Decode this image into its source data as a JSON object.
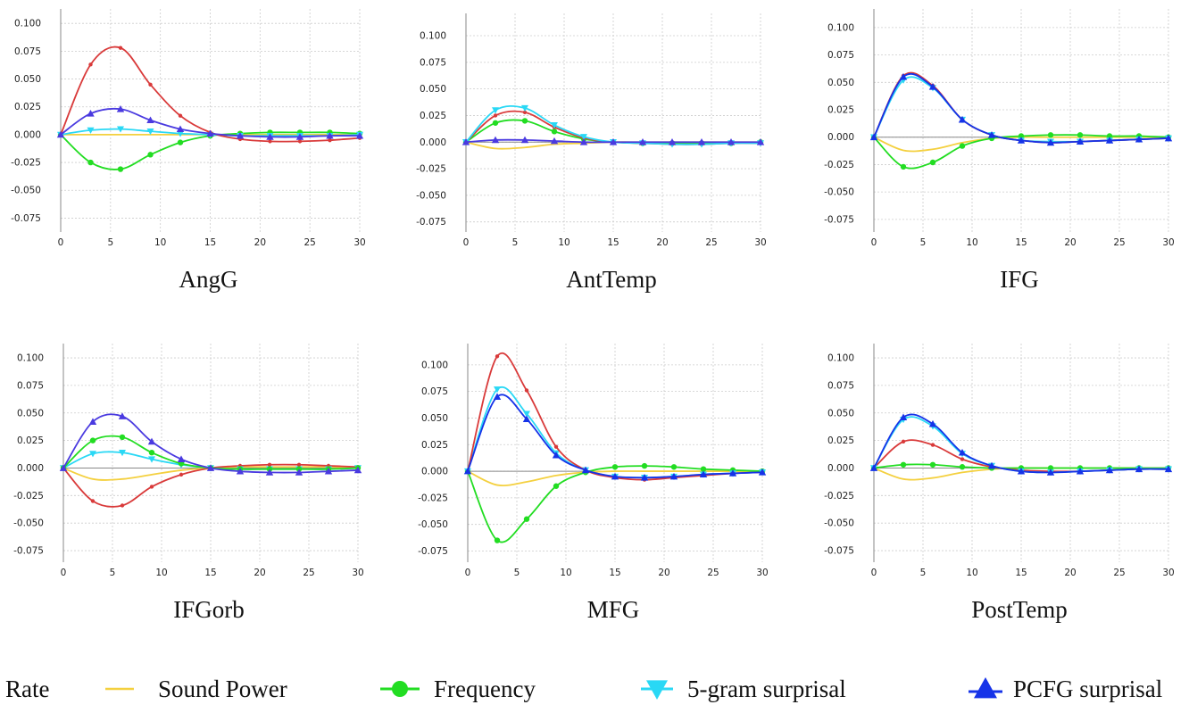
{
  "legend": {
    "items": [
      {
        "label": "Rate",
        "color": "#d93a3a",
        "marker": "none"
      },
      {
        "label": "Sound Power",
        "color": "#f4d03f",
        "marker": "line"
      },
      {
        "label": "Frequency",
        "color": "#22dd22",
        "marker": "circle"
      },
      {
        "label": "5-gram surprisal",
        "color": "#29d8f5",
        "marker": "triangle-down"
      },
      {
        "label": "PCFG surprisal",
        "color": "#1633e8",
        "marker": "triangle-up"
      }
    ]
  },
  "chart_data": [
    {
      "type": "line",
      "title": "AngG",
      "xlabel": "",
      "ylabel": "",
      "xlim": [
        0,
        30
      ],
      "ylim": [
        -0.085,
        0.11
      ],
      "xticks": [
        0,
        5,
        10,
        15,
        20,
        25,
        30
      ],
      "yticks": [
        -0.075,
        -0.05,
        -0.025,
        0.0,
        0.025,
        0.05,
        0.075,
        0.1
      ],
      "grid": true,
      "series": [
        {
          "name": "Sound Power",
          "color": "#f4d03f",
          "marker": "none",
          "x": [
            0,
            3,
            6,
            9,
            12,
            15,
            18,
            21,
            24,
            27,
            30
          ],
          "y": [
            0,
            0,
            0,
            0,
            0,
            0,
            0,
            0,
            0,
            0,
            0
          ]
        },
        {
          "name": "Frequency",
          "color": "#22dd22",
          "marker": "circle",
          "x": [
            0,
            3,
            6,
            9,
            12,
            15,
            18,
            21,
            24,
            27,
            30
          ],
          "y": [
            0,
            -0.025,
            -0.031,
            -0.018,
            -0.007,
            -0.001,
            0.001,
            0.002,
            0.002,
            0.002,
            0.001
          ]
        },
        {
          "name": "5-gram surprisal",
          "color": "#29d8f5",
          "marker": "triangle-down",
          "x": [
            0,
            3,
            6,
            9,
            12,
            15,
            18,
            21,
            24,
            27,
            30
          ],
          "y": [
            0,
            0.004,
            0.005,
            0.003,
            0.001,
            0,
            -0.001,
            -0.001,
            -0.001,
            -0.001,
            0
          ]
        },
        {
          "name": "Rate",
          "color": "#d93a3a",
          "marker": "dot",
          "x": [
            0,
            3,
            6,
            9,
            12,
            15,
            18,
            21,
            24,
            27,
            30
          ],
          "y": [
            0,
            0.063,
            0.078,
            0.045,
            0.017,
            0.002,
            -0.004,
            -0.006,
            -0.006,
            -0.005,
            -0.003
          ]
        },
        {
          "name": "PCFG surprisal",
          "color": "#4a3ae0",
          "marker": "triangle-up",
          "x": [
            0,
            3,
            6,
            9,
            12,
            15,
            18,
            21,
            24,
            27,
            30
          ],
          "y": [
            0,
            0.019,
            0.023,
            0.013,
            0.005,
            0.001,
            -0.001,
            -0.002,
            -0.002,
            -0.001,
            -0.001
          ]
        }
      ]
    },
    {
      "type": "line",
      "title": "AntTemp",
      "xlabel": "",
      "ylabel": "",
      "xlim": [
        0,
        30
      ],
      "ylim": [
        -0.085,
        0.11
      ],
      "xticks": [
        0,
        5,
        10,
        15,
        20,
        25,
        30
      ],
      "yticks": [
        -0.075,
        -0.05,
        -0.025,
        0.0,
        0.025,
        0.05,
        0.075,
        0.1
      ],
      "grid": true,
      "series": [
        {
          "name": "Sound Power",
          "color": "#f4d03f",
          "marker": "none",
          "x": [
            0,
            3,
            6,
            9,
            12,
            15,
            18,
            21,
            24,
            27,
            30
          ],
          "y": [
            0,
            -0.006,
            -0.005,
            -0.002,
            -0.001,
            0,
            0,
            0,
            0,
            0,
            0
          ]
        },
        {
          "name": "Frequency",
          "color": "#22dd22",
          "marker": "circle",
          "x": [
            0,
            3,
            6,
            9,
            12,
            15,
            18,
            21,
            24,
            27,
            30
          ],
          "y": [
            0,
            0.018,
            0.02,
            0.01,
            0.003,
            0,
            -0.001,
            -0.001,
            -0.001,
            -0.001,
            0
          ]
        },
        {
          "name": "Rate",
          "color": "#d93a3a",
          "marker": "dot",
          "x": [
            0,
            3,
            6,
            9,
            12,
            15,
            18,
            21,
            24,
            27,
            30
          ],
          "y": [
            0,
            0.025,
            0.028,
            0.014,
            0.004,
            0,
            -0.001,
            -0.002,
            -0.002,
            -0.001,
            -0.001
          ]
        },
        {
          "name": "5-gram surprisal",
          "color": "#29d8f5",
          "marker": "triangle-down",
          "x": [
            0,
            3,
            6,
            9,
            12,
            15,
            18,
            21,
            24,
            27,
            30
          ],
          "y": [
            0,
            0.03,
            0.032,
            0.016,
            0.005,
            0,
            -0.001,
            -0.002,
            -0.002,
            -0.001,
            -0.001
          ]
        },
        {
          "name": "PCFG surprisal",
          "color": "#4a3ae0",
          "marker": "triangle-up",
          "x": [
            0,
            3,
            6,
            9,
            12,
            15,
            18,
            21,
            24,
            27,
            30
          ],
          "y": [
            0,
            0.002,
            0.002,
            0.001,
            0,
            0,
            0,
            0,
            0,
            0,
            0
          ]
        }
      ]
    },
    {
      "type": "line",
      "title": "IFG",
      "xlabel": "",
      "ylabel": "",
      "xlim": [
        0,
        30
      ],
      "ylim": [
        -0.085,
        0.11
      ],
      "xticks": [
        0,
        5,
        10,
        15,
        20,
        25,
        30
      ],
      "yticks": [
        -0.075,
        -0.05,
        -0.025,
        0.0,
        0.025,
        0.05,
        0.075,
        0.1
      ],
      "grid": true,
      "series": [
        {
          "name": "Sound Power",
          "color": "#f4d03f",
          "marker": "none",
          "x": [
            0,
            3,
            6,
            9,
            12,
            15,
            18,
            21,
            24,
            27,
            30
          ],
          "y": [
            0,
            -0.012,
            -0.011,
            -0.005,
            -0.001,
            0,
            0,
            0,
            0,
            0,
            0
          ]
        },
        {
          "name": "Frequency",
          "color": "#22dd22",
          "marker": "circle",
          "x": [
            0,
            3,
            6,
            9,
            12,
            15,
            18,
            21,
            24,
            27,
            30
          ],
          "y": [
            0,
            -0.027,
            -0.023,
            -0.008,
            -0.001,
            0.001,
            0.002,
            0.002,
            0.001,
            0.001,
            0
          ]
        },
        {
          "name": "5-gram surprisal",
          "color": "#29d8f5",
          "marker": "triangle-down",
          "x": [
            0,
            3,
            6,
            9,
            12,
            15,
            18,
            21,
            24,
            27,
            30
          ],
          "y": [
            0,
            0.052,
            0.045,
            0.016,
            0.002,
            -0.003,
            -0.004,
            -0.004,
            -0.003,
            -0.002,
            -0.001
          ]
        },
        {
          "name": "Rate",
          "color": "#d93a3a",
          "marker": "dot",
          "x": [
            0,
            3,
            6,
            9,
            12,
            15,
            18,
            21,
            24,
            27,
            30
          ],
          "y": [
            0,
            0.056,
            0.047,
            0.016,
            0.002,
            -0.003,
            -0.005,
            -0.004,
            -0.003,
            -0.002,
            -0.001
          ]
        },
        {
          "name": "PCFG surprisal",
          "color": "#1633e8",
          "marker": "triangle-up",
          "x": [
            0,
            3,
            6,
            9,
            12,
            15,
            18,
            21,
            24,
            27,
            30
          ],
          "y": [
            0,
            0.055,
            0.046,
            0.016,
            0.002,
            -0.003,
            -0.005,
            -0.004,
            -0.003,
            -0.002,
            -0.001
          ]
        }
      ]
    },
    {
      "type": "line",
      "title": "IFGorb",
      "xlabel": "",
      "ylabel": "",
      "xlim": [
        0,
        30
      ],
      "ylim": [
        -0.085,
        0.11
      ],
      "xticks": [
        0,
        5,
        10,
        15,
        20,
        25,
        30
      ],
      "yticks": [
        -0.075,
        -0.05,
        -0.025,
        0.0,
        0.025,
        0.05,
        0.075,
        0.1
      ],
      "grid": true,
      "series": [
        {
          "name": "Sound Power",
          "color": "#f4d03f",
          "marker": "none",
          "x": [
            0,
            3,
            6,
            9,
            12,
            15,
            18,
            21,
            24,
            27,
            30
          ],
          "y": [
            0,
            -0.01,
            -0.01,
            -0.006,
            -0.002,
            0,
            0.001,
            0.001,
            0.001,
            0.001,
            0
          ]
        },
        {
          "name": "Rate",
          "color": "#d93a3a",
          "marker": "dot",
          "x": [
            0,
            3,
            6,
            9,
            12,
            15,
            18,
            21,
            24,
            27,
            30
          ],
          "y": [
            0,
            -0.03,
            -0.034,
            -0.017,
            -0.006,
            0,
            0.002,
            0.003,
            0.003,
            0.002,
            0.001
          ]
        },
        {
          "name": "5-gram surprisal",
          "color": "#29d8f5",
          "marker": "triangle-down",
          "x": [
            0,
            3,
            6,
            9,
            12,
            15,
            18,
            21,
            24,
            27,
            30
          ],
          "y": [
            0,
            0.013,
            0.014,
            0.008,
            0.003,
            0,
            -0.001,
            -0.001,
            -0.001,
            -0.001,
            0
          ]
        },
        {
          "name": "Frequency",
          "color": "#22dd22",
          "marker": "circle",
          "x": [
            0,
            3,
            6,
            9,
            12,
            15,
            18,
            21,
            24,
            27,
            30
          ],
          "y": [
            0,
            0.025,
            0.028,
            0.014,
            0.004,
            0,
            -0.001,
            -0.001,
            -0.001,
            -0.001,
            0
          ]
        },
        {
          "name": "PCFG surprisal",
          "color": "#4a3ae0",
          "marker": "triangle-up",
          "x": [
            0,
            3,
            6,
            9,
            12,
            15,
            18,
            21,
            24,
            27,
            30
          ],
          "y": [
            0,
            0.042,
            0.047,
            0.024,
            0.008,
            0,
            -0.003,
            -0.004,
            -0.004,
            -0.003,
            -0.002
          ]
        }
      ]
    },
    {
      "type": "line",
      "title": "MFG",
      "xlabel": "",
      "ylabel": "",
      "xlim": [
        0,
        30
      ],
      "ylim": [
        -0.085,
        0.12
      ],
      "xticks": [
        0,
        5,
        10,
        15,
        20,
        25,
        30
      ],
      "yticks": [
        -0.075,
        -0.05,
        -0.025,
        0.0,
        0.025,
        0.05,
        0.075,
        0.1
      ],
      "grid": true,
      "series": [
        {
          "name": "Sound Power",
          "color": "#f4d03f",
          "marker": "none",
          "x": [
            0,
            3,
            6,
            9,
            12,
            15,
            18,
            21,
            24,
            27,
            30
          ],
          "y": [
            0,
            -0.013,
            -0.01,
            -0.004,
            -0.001,
            0,
            0,
            0,
            0,
            0,
            0
          ]
        },
        {
          "name": "Frequency",
          "color": "#22dd22",
          "marker": "circle",
          "x": [
            0,
            3,
            6,
            9,
            12,
            15,
            18,
            21,
            24,
            27,
            30
          ],
          "y": [
            0,
            -0.065,
            -0.045,
            -0.014,
            -0.001,
            0.004,
            0.005,
            0.004,
            0.002,
            0.001,
            0
          ]
        },
        {
          "name": "5-gram surprisal",
          "color": "#29d8f5",
          "marker": "triangle-down",
          "x": [
            0,
            3,
            6,
            9,
            12,
            15,
            18,
            21,
            24,
            27,
            30
          ],
          "y": [
            0,
            0.077,
            0.054,
            0.017,
            0.001,
            -0.005,
            -0.006,
            -0.005,
            -0.003,
            -0.002,
            -0.001
          ]
        },
        {
          "name": "Rate",
          "color": "#d93a3a",
          "marker": "dot",
          "x": [
            0,
            3,
            6,
            9,
            12,
            15,
            18,
            21,
            24,
            27,
            30
          ],
          "y": [
            0,
            0.108,
            0.076,
            0.023,
            0.001,
            -0.006,
            -0.008,
            -0.006,
            -0.004,
            -0.002,
            -0.001
          ]
        },
        {
          "name": "PCFG surprisal",
          "color": "#1633e8",
          "marker": "triangle-up",
          "x": [
            0,
            3,
            6,
            9,
            12,
            15,
            18,
            21,
            24,
            27,
            30
          ],
          "y": [
            0,
            0.07,
            0.049,
            0.015,
            0.001,
            -0.005,
            -0.006,
            -0.005,
            -0.003,
            -0.002,
            -0.001
          ]
        }
      ]
    },
    {
      "type": "line",
      "title": "PostTemp",
      "xlabel": "",
      "ylabel": "",
      "xlim": [
        0,
        30
      ],
      "ylim": [
        -0.085,
        0.11
      ],
      "xticks": [
        0,
        5,
        10,
        15,
        20,
        25,
        30
      ],
      "yticks": [
        -0.075,
        -0.05,
        -0.025,
        0.0,
        0.025,
        0.05,
        0.075,
        0.1
      ],
      "grid": true,
      "series": [
        {
          "name": "Sound Power",
          "color": "#f4d03f",
          "marker": "none",
          "x": [
            0,
            3,
            6,
            9,
            12,
            15,
            18,
            21,
            24,
            27,
            30
          ],
          "y": [
            0,
            -0.01,
            -0.009,
            -0.004,
            -0.001,
            0,
            0,
            0,
            0,
            0,
            0
          ]
        },
        {
          "name": "Frequency",
          "color": "#22dd22",
          "marker": "circle",
          "x": [
            0,
            3,
            6,
            9,
            12,
            15,
            18,
            21,
            24,
            27,
            30
          ],
          "y": [
            0,
            0.003,
            0.003,
            0.001,
            0,
            0,
            0,
            0,
            0,
            0,
            0
          ]
        },
        {
          "name": "Rate",
          "color": "#d93a3a",
          "marker": "dot",
          "x": [
            0,
            3,
            6,
            9,
            12,
            15,
            18,
            21,
            24,
            27,
            30
          ],
          "y": [
            0,
            0.024,
            0.021,
            0.008,
            0.001,
            -0.002,
            -0.003,
            -0.003,
            -0.002,
            -0.001,
            -0.001
          ]
        },
        {
          "name": "5-gram surprisal",
          "color": "#29d8f5",
          "marker": "triangle-down",
          "x": [
            0,
            3,
            6,
            9,
            12,
            15,
            18,
            21,
            24,
            27,
            30
          ],
          "y": [
            0,
            0.044,
            0.038,
            0.013,
            0.002,
            -0.003,
            -0.004,
            -0.003,
            -0.002,
            -0.001,
            -0.001
          ]
        },
        {
          "name": "PCFG surprisal",
          "color": "#1633e8",
          "marker": "triangle-up",
          "x": [
            0,
            3,
            6,
            9,
            12,
            15,
            18,
            21,
            24,
            27,
            30
          ],
          "y": [
            0,
            0.046,
            0.04,
            0.014,
            0.002,
            -0.003,
            -0.004,
            -0.003,
            -0.002,
            -0.001,
            -0.001
          ]
        }
      ]
    }
  ]
}
